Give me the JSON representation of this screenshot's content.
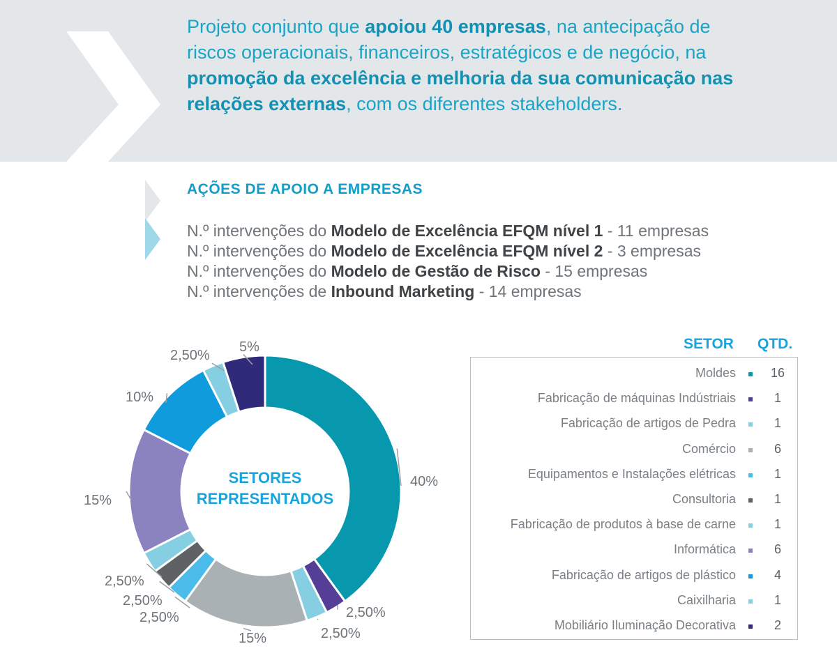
{
  "intro": {
    "p1": "Projeto conjunto que ",
    "b1": "apoiou 40 empresas",
    "p2": ", na antecipação de riscos operacionais, financeiros, estratégicos e de negócio, na ",
    "b2": "promoção da excelência e melhoria da sua comunicação nas relações externas",
    "p3": ", com os diferentes stakeholders."
  },
  "section_title": "AÇÕES DE APOIO A EMPRESAS",
  "interventions": [
    {
      "prefix": "N.º intervenções do ",
      "bold": "Modelo de Excelência EFQM nível 1",
      "suffix": " - 11 empresas"
    },
    {
      "prefix": "N.º intervenções do ",
      "bold": "Modelo de Excelência EFQM nível 2",
      "suffix": " - 3 empresas"
    },
    {
      "prefix": "N.º intervenções do ",
      "bold": "Modelo de Gestão de Risco",
      "suffix": " - 15 empresas"
    },
    {
      "prefix": "N.º intervenções de ",
      "bold": "Inbound Marketing",
      "suffix": " - 14 empresas"
    }
  ],
  "table": {
    "header_setor": "SETOR",
    "header_qtd": "QTD."
  },
  "chart_data": {
    "type": "pie",
    "center_label": [
      "SETORES",
      "REPRESENTADOS"
    ],
    "slices": [
      {
        "name": "Moldes",
        "qty": "16",
        "value": 40,
        "label": "40%",
        "color": "#0898ae"
      },
      {
        "name": "Fabricação de máquinas Indústriais",
        "qty": "1",
        "value": 2.5,
        "label": "2,50%",
        "color": "#553f96"
      },
      {
        "name": "Fabricação de artigos de Pedra",
        "qty": "1",
        "value": 2.5,
        "label": "2,50%",
        "color": "#86cfe3"
      },
      {
        "name": "Comércio",
        "qty": "6",
        "value": 15,
        "label": "15%",
        "color": "#aab1b4"
      },
      {
        "name": "Equipamentos e Instalações elétricas",
        "qty": "1",
        "value": 2.5,
        "label": "2,50%",
        "color": "#4bbbe9"
      },
      {
        "name": "Consultoria",
        "qty": "1",
        "value": 2.5,
        "label": "2,50%",
        "color": "#5f6265"
      },
      {
        "name": "Fabricação de produtos à base de carne",
        "qty": "1",
        "value": 2.5,
        "label": "2,50%",
        "color": "#86cfe3"
      },
      {
        "name": "Informática",
        "qty": "6",
        "value": 15,
        "label": "15%",
        "color": "#8a83c0"
      },
      {
        "name": "Fabricação de artigos de plástico",
        "qty": "4",
        "value": 10,
        "label": "10%",
        "color": "#0f9bdc"
      },
      {
        "name": "Caixilharia",
        "qty": "1",
        "value": 2.5,
        "label": "2,50%",
        "color": "#86cfe3"
      },
      {
        "name": "Mobiliário Iluminação Decorativa",
        "qty": "2",
        "value": 5,
        "label": "5%",
        "color": "#2f2b7a"
      }
    ]
  }
}
